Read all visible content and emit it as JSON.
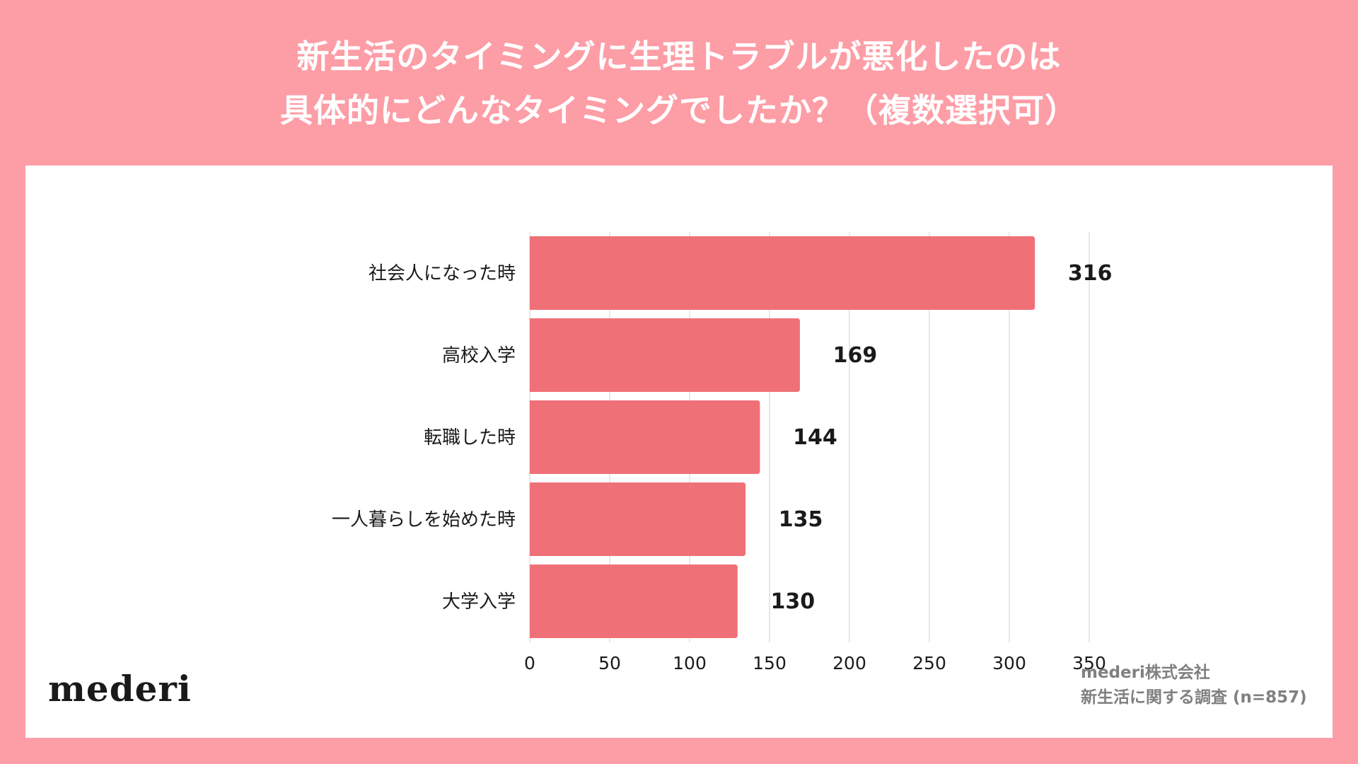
{
  "title": {
    "line1": "新生活のタイミングに生理トラブルが悪化したのは",
    "line2": "具体的にどんなタイミングでしたか？（複数選択可）"
  },
  "colors": {
    "background": "#fd9da6",
    "panel": "#ffffff",
    "bar": "#f07078",
    "grid": "#d9d9d9",
    "text": "#1a1a1a"
  },
  "chart_data": {
    "type": "bar",
    "orientation": "horizontal",
    "title": "新生活のタイミングに生理トラブルが悪化したのは具体的にどんなタイミングでしたか？（複数選択可）",
    "categories": [
      "社会人になった時",
      "高校入学",
      "転職した時",
      "一人暮らしを始めた時",
      "大学入学"
    ],
    "values": [
      316,
      169,
      144,
      135,
      130
    ],
    "xlim": [
      0,
      350
    ],
    "xticks": [
      0,
      50,
      100,
      150,
      200,
      250,
      300,
      350
    ],
    "xlabel": "",
    "ylabel": "",
    "grid": "vertical",
    "legend": "none",
    "data_labels": true
  },
  "logo": "mederi",
  "source": {
    "line1": "mederi株式会社",
    "line2": "新生活に関する調査 (n=857)"
  }
}
